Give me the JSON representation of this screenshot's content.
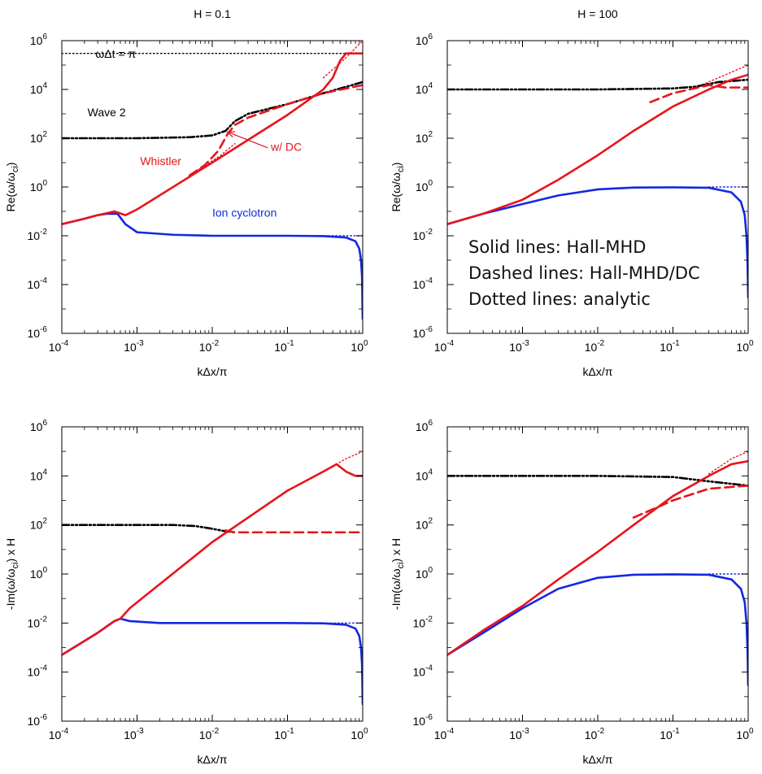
{
  "chart_data": [
    {
      "type": "line",
      "title": "H = 0.1",
      "xlabel": "kΔx/π",
      "ylabel": "Re(ω/ω",
      "ylabel_sub": "ci",
      "ylabel_suffix": ")",
      "xscale": "log",
      "yscale": "log",
      "xlim": [
        0.0001,
        1
      ],
      "ylim": [
        1e-06,
        1000000
      ],
      "grid": false,
      "annotations": [
        {
          "text": "ωΔt = π",
          "x": 0.00028,
          "y": 200000,
          "color": "#000000"
        },
        {
          "text": "Wave 2",
          "x": 0.00022,
          "y": 800,
          "color": "#000000"
        },
        {
          "text": "Whistler",
          "x": 0.0011,
          "y": 8,
          "color": "#e8141c"
        },
        {
          "text": "w/ DC",
          "x": 0.06,
          "y": 30,
          "color": "#e8141c"
        },
        {
          "text": "Ion cyclotron",
          "x": 0.01,
          "y": 0.06,
          "color": "#1428e0"
        }
      ],
      "arrow": {
        "from": [
          0.055,
          40
        ],
        "to": [
          0.016,
          180
        ],
        "color": "#e8141c"
      },
      "series": [
        {
          "color": "#000000",
          "style": "dotted",
          "points": [
            [
              0.0001,
              300000
            ],
            [
              1,
              300000
            ]
          ]
        },
        {
          "color": "#1428e0",
          "style": "dotted",
          "points": [
            [
              0.2,
              0.01
            ],
            [
              1,
              0.01
            ]
          ]
        },
        {
          "color": "#e8141c",
          "style": "dotted",
          "points": [
            [
              0.005,
              3
            ],
            [
              0.013,
              20
            ],
            [
              0.02,
              60
            ]
          ]
        },
        {
          "color": "#e8141c",
          "style": "dotted",
          "points": [
            [
              0.3,
              30000
            ],
            [
              0.6,
              200000
            ],
            [
              1,
              1000000
            ]
          ]
        },
        {
          "color": "#000000",
          "style": "dashdotdot",
          "points": [
            [
              0.0001,
              100
            ],
            [
              0.001,
              100
            ],
            [
              0.005,
              110
            ],
            [
              0.01,
              130
            ],
            [
              0.015,
              200
            ],
            [
              0.02,
              500
            ],
            [
              0.03,
              1000
            ],
            [
              0.1,
              2500
            ],
            [
              0.3,
              7000
            ],
            [
              1,
              20000
            ]
          ]
        },
        {
          "color": "#e8141c",
          "style": "dashed",
          "points": [
            [
              0.005,
              3
            ],
            [
              0.008,
              8
            ],
            [
              0.012,
              30
            ],
            [
              0.016,
              150
            ],
            [
              0.02,
              350
            ],
            [
              0.03,
              700
            ],
            [
              0.1,
              2500
            ],
            [
              0.3,
              7000
            ],
            [
              1,
              15000
            ]
          ]
        },
        {
          "color": "#1428e0",
          "style": "solid",
          "points": [
            [
              0.0001,
              0.03
            ],
            [
              0.0002,
              0.05
            ],
            [
              0.0003,
              0.07
            ],
            [
              0.0004,
              0.08
            ],
            [
              0.00055,
              0.08
            ],
            [
              0.0007,
              0.03
            ],
            [
              0.001,
              0.014
            ],
            [
              0.003,
              0.011
            ],
            [
              0.01,
              0.01
            ],
            [
              0.1,
              0.01
            ],
            [
              0.3,
              0.0097
            ],
            [
              0.6,
              0.0085
            ],
            [
              0.8,
              0.006
            ],
            [
              0.9,
              0.003
            ],
            [
              0.95,
              0.001
            ],
            [
              0.98,
              0.0002
            ],
            [
              1,
              4e-06
            ]
          ]
        },
        {
          "color": "#e8141c",
          "style": "solid",
          "points": [
            [
              0.0001,
              0.03
            ],
            [
              0.0002,
              0.05
            ],
            [
              0.0003,
              0.07
            ],
            [
              0.0004,
              0.085
            ],
            [
              0.0005,
              0.1
            ],
            [
              0.0007,
              0.07
            ],
            [
              0.001,
              0.12
            ],
            [
              0.01,
              10
            ],
            [
              0.1,
              900
            ],
            [
              0.3,
              10000
            ],
            [
              0.4,
              30000
            ],
            [
              0.5,
              150000
            ],
            [
              0.6,
              300000
            ],
            [
              1,
              300000
            ]
          ]
        }
      ]
    },
    {
      "type": "line",
      "title": "H = 100",
      "xlabel": "kΔx/π",
      "ylabel": "Re(ω/ω",
      "ylabel_sub": "ci",
      "ylabel_suffix": ")",
      "xscale": "log",
      "yscale": "log",
      "xlim": [
        0.0001,
        1
      ],
      "ylim": [
        1e-06,
        1000000
      ],
      "grid": false,
      "text_block": [
        "Solid lines: Hall-MHD",
        "Dashed lines: Hall-MHD/DC",
        "Dotted lines: analytic"
      ],
      "series": [
        {
          "color": "#1428e0",
          "style": "dotted",
          "points": [
            [
              0.3,
              1
            ],
            [
              1,
              1
            ]
          ]
        },
        {
          "color": "#e8141c",
          "style": "dotted",
          "points": [
            [
              0.2,
              12000
            ],
            [
              0.5,
              40000
            ],
            [
              1,
              100000
            ]
          ]
        },
        {
          "color": "#000000",
          "style": "dashdotdot",
          "points": [
            [
              0.0001,
              10000
            ],
            [
              0.01,
              10000
            ],
            [
              0.1,
              11000
            ],
            [
              0.2,
              13000
            ],
            [
              0.4,
              20000
            ],
            [
              1,
              25000
            ]
          ]
        },
        {
          "color": "#e8141c",
          "style": "dashed",
          "points": [
            [
              0.05,
              3000
            ],
            [
              0.1,
              7000
            ],
            [
              0.3,
              15000
            ],
            [
              0.5,
              12000
            ],
            [
              1,
              12000
            ]
          ]
        },
        {
          "color": "#1428e0",
          "style": "solid",
          "points": [
            [
              0.0001,
              0.03
            ],
            [
              0.0003,
              0.08
            ],
            [
              0.001,
              0.2
            ],
            [
              0.003,
              0.45
            ],
            [
              0.01,
              0.8
            ],
            [
              0.03,
              0.95
            ],
            [
              0.1,
              0.97
            ],
            [
              0.3,
              0.93
            ],
            [
              0.6,
              0.6
            ],
            [
              0.8,
              0.25
            ],
            [
              0.9,
              0.07
            ],
            [
              0.95,
              0.01
            ],
            [
              0.98,
              0.0008
            ],
            [
              1,
              3e-05
            ]
          ]
        },
        {
          "color": "#e8141c",
          "style": "solid",
          "points": [
            [
              0.0001,
              0.03
            ],
            [
              0.0003,
              0.08
            ],
            [
              0.001,
              0.3
            ],
            [
              0.003,
              2
            ],
            [
              0.01,
              20
            ],
            [
              0.03,
              200
            ],
            [
              0.1,
              2000
            ],
            [
              0.3,
              10000
            ],
            [
              0.6,
              25000
            ],
            [
              1,
              40000
            ]
          ]
        }
      ]
    },
    {
      "type": "line",
      "title": "",
      "xlabel": "kΔx/π",
      "ylabel": "-Im(ω/ω",
      "ylabel_sub": "ci",
      "ylabel_suffix": ") x H",
      "xscale": "log",
      "yscale": "log",
      "xlim": [
        0.0001,
        1
      ],
      "ylim": [
        1e-06,
        1000000
      ],
      "grid": false,
      "series": [
        {
          "color": "#1428e0",
          "style": "dotted",
          "points": [
            [
              0.3,
              0.01
            ],
            [
              1,
              0.01
            ]
          ]
        },
        {
          "color": "#e8141c",
          "style": "dotted",
          "points": [
            [
              0.4,
              25000
            ],
            [
              0.6,
              50000
            ],
            [
              1,
              100000
            ]
          ]
        },
        {
          "color": "#000000",
          "style": "dashdotdot",
          "points": [
            [
              0.0001,
              100
            ],
            [
              0.003,
              100
            ],
            [
              0.006,
              90
            ],
            [
              0.01,
              70
            ],
            [
              0.015,
              55
            ],
            [
              0.02,
              50
            ]
          ]
        },
        {
          "color": "#e8141c",
          "style": "dashed",
          "points": [
            [
              0.015,
              60
            ],
            [
              0.02,
              50
            ],
            [
              0.1,
              50
            ],
            [
              1,
              50
            ]
          ]
        },
        {
          "color": "#1428e0",
          "style": "solid",
          "points": [
            [
              0.0001,
              0.0005
            ],
            [
              0.0003,
              0.004
            ],
            [
              0.0005,
              0.012
            ],
            [
              0.0006,
              0.015
            ],
            [
              0.0008,
              0.012
            ],
            [
              0.002,
              0.01
            ],
            [
              0.01,
              0.01
            ],
            [
              0.1,
              0.01
            ],
            [
              0.3,
              0.0097
            ],
            [
              0.6,
              0.0085
            ],
            [
              0.8,
              0.006
            ],
            [
              0.9,
              0.003
            ],
            [
              0.95,
              0.001
            ],
            [
              0.98,
              0.0002
            ],
            [
              1,
              5e-06
            ]
          ]
        },
        {
          "color": "#e8141c",
          "style": "solid",
          "points": [
            [
              0.0001,
              0.0005
            ],
            [
              0.0003,
              0.004
            ],
            [
              0.0005,
              0.012
            ],
            [
              0.0006,
              0.015
            ],
            [
              0.0008,
              0.04
            ],
            [
              0.001,
              0.07
            ],
            [
              0.01,
              20
            ],
            [
              0.1,
              2500
            ],
            [
              0.3,
              15000
            ],
            [
              0.45,
              30000
            ],
            [
              0.6,
              15000
            ],
            [
              0.8,
              10000
            ],
            [
              1,
              10000
            ]
          ]
        }
      ]
    },
    {
      "type": "line",
      "title": "",
      "xlabel": "kΔx/π",
      "ylabel": "-Im(ω/ω",
      "ylabel_sub": "ci",
      "ylabel_suffix": ") x H",
      "xscale": "log",
      "yscale": "log",
      "xlim": [
        0.0001,
        1
      ],
      "ylim": [
        1e-06,
        1000000
      ],
      "grid": false,
      "series": [
        {
          "color": "#1428e0",
          "style": "dotted",
          "points": [
            [
              0.3,
              1
            ],
            [
              1,
              1
            ]
          ]
        },
        {
          "color": "#e8141c",
          "style": "dotted",
          "points": [
            [
              0.3,
              12000
            ],
            [
              0.6,
              50000
            ],
            [
              1,
              100000
            ]
          ]
        },
        {
          "color": "#000000",
          "style": "dashdotdot",
          "points": [
            [
              0.0001,
              10000
            ],
            [
              0.01,
              10000
            ],
            [
              0.1,
              9000
            ],
            [
              0.3,
              6000
            ],
            [
              1,
              4000
            ]
          ]
        },
        {
          "color": "#e8141c",
          "style": "dashed",
          "points": [
            [
              0.03,
              200
            ],
            [
              0.1,
              1000
            ],
            [
              0.3,
              3000
            ],
            [
              1,
              4000
            ]
          ]
        },
        {
          "color": "#1428e0",
          "style": "solid",
          "points": [
            [
              0.0001,
              0.0005
            ],
            [
              0.0003,
              0.004
            ],
            [
              0.001,
              0.04
            ],
            [
              0.003,
              0.25
            ],
            [
              0.01,
              0.7
            ],
            [
              0.03,
              0.93
            ],
            [
              0.1,
              0.97
            ],
            [
              0.3,
              0.93
            ],
            [
              0.6,
              0.6
            ],
            [
              0.8,
              0.25
            ],
            [
              0.9,
              0.07
            ],
            [
              0.95,
              0.01
            ],
            [
              0.98,
              0.0008
            ],
            [
              1,
              3e-05
            ]
          ]
        },
        {
          "color": "#e8141c",
          "style": "solid",
          "points": [
            [
              0.0001,
              0.0005
            ],
            [
              0.0003,
              0.005
            ],
            [
              0.001,
              0.05
            ],
            [
              0.003,
              0.6
            ],
            [
              0.01,
              8
            ],
            [
              0.03,
              100
            ],
            [
              0.1,
              1500
            ],
            [
              0.3,
              10000
            ],
            [
              0.6,
              30000
            ],
            [
              1,
              40000
            ]
          ]
        }
      ]
    }
  ]
}
